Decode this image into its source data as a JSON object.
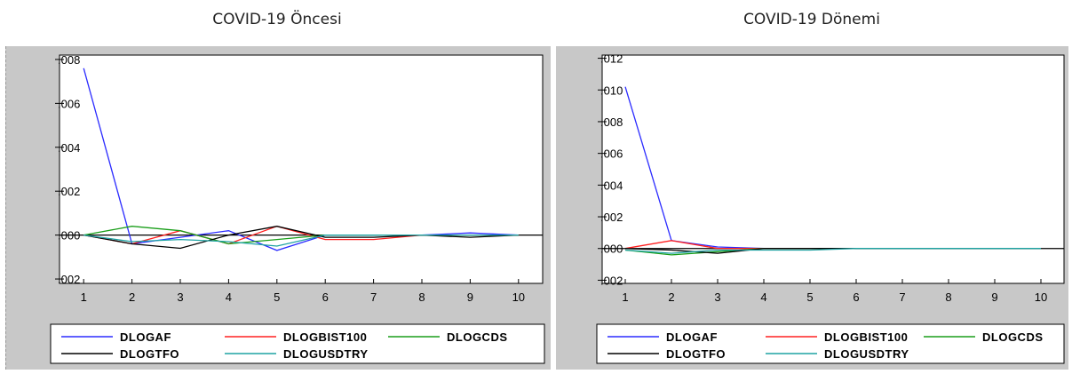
{
  "titles": [
    "COVID-19 Öncesi",
    "COVID-19 Dönemi"
  ],
  "chart_data": [
    {
      "type": "line",
      "title": "COVID-19 Öncesi",
      "x": [
        1,
        2,
        3,
        4,
        5,
        6,
        7,
        8,
        9,
        10
      ],
      "ylim": [
        -0.0022,
        0.0082
      ],
      "yticks": [
        0.008,
        0.006,
        0.004,
        0.002,
        0.0,
        -0.002
      ],
      "ytick_labels": [
        ".008",
        ".006",
        ".004",
        ".002",
        ".000",
        ".002"
      ],
      "grid": false,
      "legend": "bottom",
      "series": [
        {
          "name": "DLOGAF",
          "color": "#2b2bff",
          "values": [
            0.0076,
            -0.0004,
            -0.0001,
            0.0002,
            -0.0007,
            0.0,
            0.0,
            0.0,
            0.0001,
            0.0
          ]
        },
        {
          "name": "DLOGBIST100",
          "color": "#ff2020",
          "values": [
            0.0,
            -0.0004,
            0.0002,
            -0.0004,
            0.0004,
            -0.0002,
            -0.0002,
            0.0,
            0.0,
            0.0
          ]
        },
        {
          "name": "DLOGCDS",
          "color": "#1a9e1a",
          "values": [
            0.0,
            0.0004,
            0.0002,
            -0.0004,
            -0.0002,
            0.0,
            0.0,
            0.0,
            0.0,
            0.0
          ]
        },
        {
          "name": "DLOGTFO",
          "color": "#000000",
          "values": [
            0.0,
            -0.0004,
            -0.0006,
            0.0,
            0.0004,
            -0.0001,
            -0.0001,
            0.0,
            -0.0001,
            0.0
          ]
        },
        {
          "name": "DLOGUSDTRY",
          "color": "#1fa3a3",
          "values": [
            0.0,
            -0.0003,
            -0.0002,
            -0.0003,
            -0.0005,
            0.0,
            0.0,
            0.0,
            0.0,
            0.0
          ]
        }
      ]
    },
    {
      "type": "line",
      "title": "COVID-19 Dönemi",
      "x": [
        1,
        2,
        3,
        4,
        5,
        6,
        7,
        8,
        9,
        10
      ],
      "ylim": [
        -0.0022,
        0.0122
      ],
      "yticks": [
        0.012,
        0.01,
        0.008,
        0.006,
        0.004,
        0.002,
        0.0,
        -0.002
      ],
      "ytick_labels": [
        ".012",
        ".010",
        ".008",
        ".006",
        ".004",
        ".002",
        ".000",
        ".002"
      ],
      "grid": false,
      "legend": "bottom",
      "series": [
        {
          "name": "DLOGAF",
          "color": "#2b2bff",
          "values": [
            0.0102,
            0.0005,
            0.0001,
            0.0,
            0.0,
            0.0,
            0.0,
            0.0,
            0.0,
            0.0
          ]
        },
        {
          "name": "DLOGBIST100",
          "color": "#ff2020",
          "values": [
            0.0,
            0.0005,
            0.0,
            0.0,
            0.0,
            0.0,
            0.0,
            0.0,
            0.0,
            0.0
          ]
        },
        {
          "name": "DLOGCDS",
          "color": "#1a9e1a",
          "values": [
            -0.0001,
            -0.0004,
            -0.0002,
            0.0,
            0.0,
            0.0,
            0.0,
            0.0,
            0.0,
            0.0
          ]
        },
        {
          "name": "DLOGTFO",
          "color": "#000000",
          "values": [
            0.0,
            -0.0001,
            -0.0003,
            0.0,
            0.0,
            0.0,
            0.0,
            0.0,
            0.0,
            0.0
          ]
        },
        {
          "name": "DLOGUSDTRY",
          "color": "#1fa3a3",
          "values": [
            -0.0001,
            -0.0003,
            -0.0001,
            -0.0001,
            -0.0001,
            0.0,
            0.0,
            0.0,
            0.0,
            0.0
          ]
        }
      ]
    }
  ]
}
